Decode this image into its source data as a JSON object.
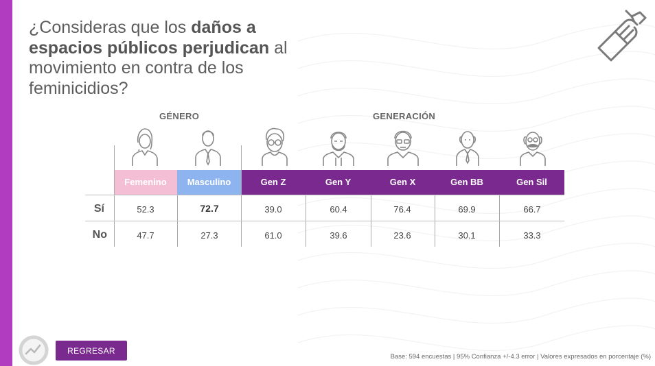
{
  "question": {
    "prefix": "¿Consideras que los",
    "bold": "daños a espacios públicos perjudican",
    "suffix": "al movimiento en contra de los feminicidios?"
  },
  "groups": {
    "gender": "GÉNERO",
    "generation": "GENERACIÓN"
  },
  "columns": [
    "Femenino",
    "Masculino",
    "Gen Z",
    "Gen Y",
    "Gen X",
    "Gen BB",
    "Gen Sil"
  ],
  "rows": [
    {
      "label": "Sí",
      "values": [
        "52.3",
        "72.7",
        "39.0",
        "60.4",
        "76.4",
        "69.9",
        "66.7"
      ]
    },
    {
      "label": "No",
      "values": [
        "47.7",
        "27.3",
        "61.0",
        "39.6",
        "23.6",
        "30.1",
        "33.3"
      ]
    }
  ],
  "colors": {
    "sidebar": "#b23cc0",
    "femenino": "#f4bfd5",
    "masculino": "#8db4ef",
    "generation": "#7a2a8e"
  },
  "icons": [
    "woman-icon",
    "man-icon",
    "young-glasses-icon",
    "bearded-man-icon",
    "man-glasses-icon",
    "elderly-man-icon",
    "elderly-mustache-icon"
  ],
  "back_button": "REGRESAR",
  "footer": "Base: 594 encuestas  |  95% Confianza +/-4.3 error  |  Valores expresados en porcentaje (%)"
}
